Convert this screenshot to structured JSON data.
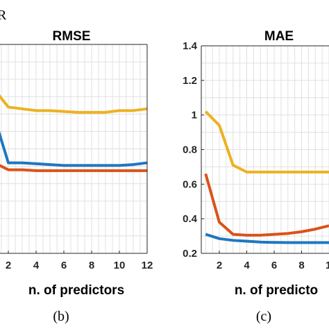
{
  "corner_fragment": "R",
  "colors": {
    "blue": "#1f77c0",
    "orange": "#d95319",
    "yellow": "#edb120",
    "grid": "#e0e0e0",
    "axis": "#262626"
  },
  "chart_data": [
    {
      "type": "line",
      "title": "RMSE",
      "xlabel": "n. of predictors",
      "panel_label": "(b)",
      "x": [
        1,
        2,
        3,
        4,
        5,
        6,
        7,
        8,
        9,
        10,
        11,
        12
      ],
      "xlim": [
        1,
        12
      ],
      "x_ticks": [
        2,
        4,
        6,
        8,
        10,
        12
      ],
      "grid": true,
      "series": [
        {
          "color": "yellow",
          "values": [
            1.14,
            1.04,
            1.03,
            1.02,
            1.02,
            1.015,
            1.01,
            1.01,
            1.01,
            1.02,
            1.02,
            1.03
          ]
        },
        {
          "color": "blue",
          "values": [
            0.98,
            0.72,
            0.72,
            0.715,
            0.71,
            0.705,
            0.705,
            0.705,
            0.705,
            0.705,
            0.71,
            0.72
          ]
        },
        {
          "color": "orange",
          "values": [
            0.72,
            0.68,
            0.68,
            0.675,
            0.675,
            0.675,
            0.675,
            0.675,
            0.675,
            0.675,
            0.675,
            0.675
          ]
        }
      ]
    },
    {
      "type": "line",
      "title": "MAE",
      "xlabel": "n. of predicto",
      "panel_label": "(c)",
      "x": [
        1,
        2,
        3,
        4,
        5,
        6,
        7,
        8,
        9,
        10
      ],
      "xlim": [
        1,
        10
      ],
      "ylim": [
        0.2,
        1.4
      ],
      "x_ticks": [
        2,
        4,
        6,
        8
      ],
      "x_tick_partial": "1",
      "y_ticks": [
        "0.2",
        "0.4",
        "0.6",
        "0.8",
        "1",
        "1.2",
        "1.4"
      ],
      "grid": true,
      "series": [
        {
          "color": "yellow",
          "values": [
            1.02,
            0.94,
            0.71,
            0.67,
            0.67,
            0.67,
            0.67,
            0.67,
            0.67,
            0.67
          ]
        },
        {
          "color": "orange",
          "values": [
            0.66,
            0.38,
            0.31,
            0.305,
            0.305,
            0.31,
            0.315,
            0.325,
            0.34,
            0.36
          ]
        },
        {
          "color": "blue",
          "values": [
            0.31,
            0.285,
            0.275,
            0.27,
            0.265,
            0.263,
            0.262,
            0.262,
            0.262,
            0.262
          ]
        }
      ]
    }
  ]
}
